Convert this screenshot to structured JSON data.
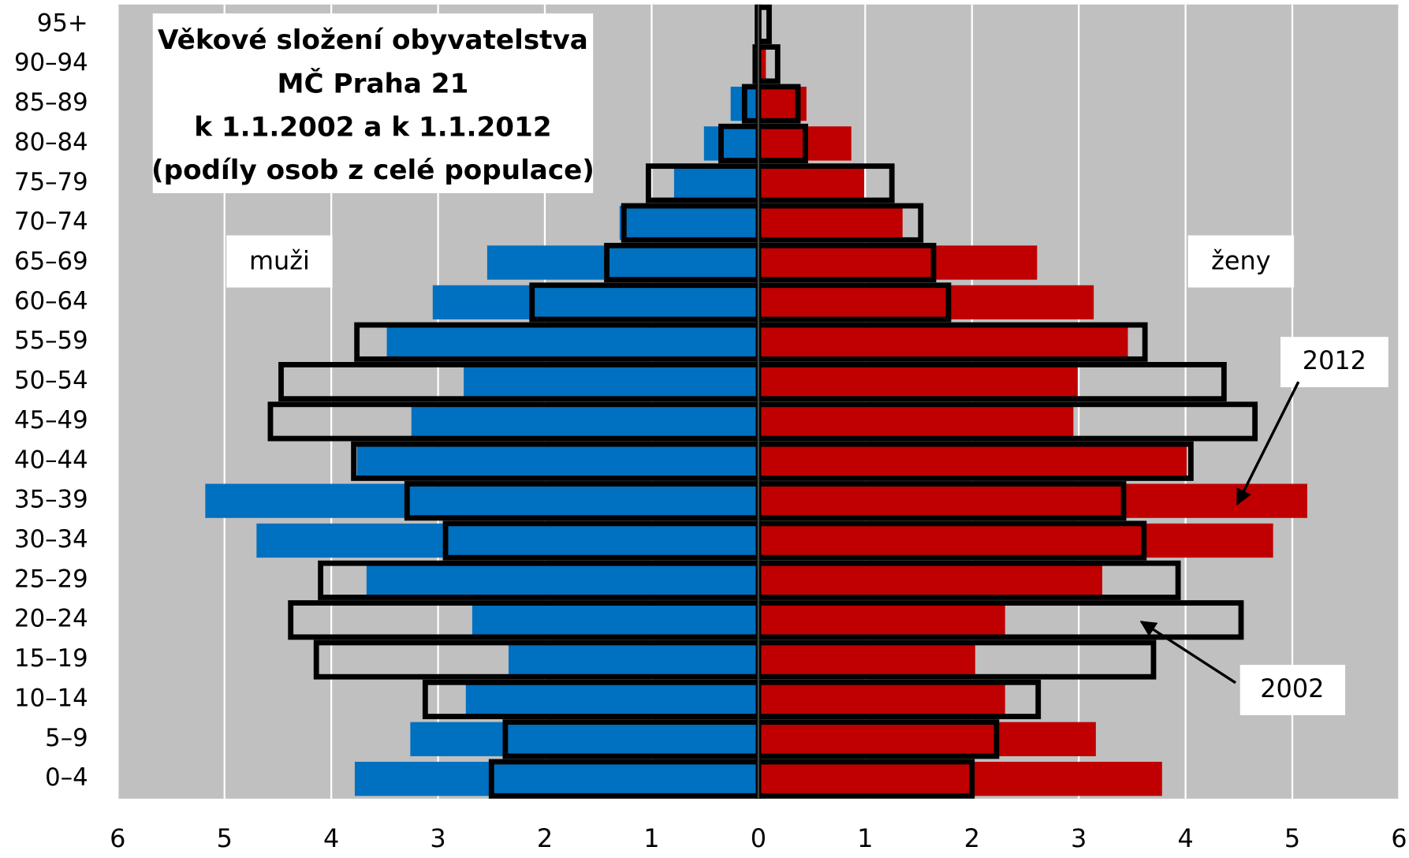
{
  "chart_data": {
    "type": "bar",
    "orientation": "horizontal",
    "title": [
      "Věkové složení obyvatelstva",
      "MČ Praha 21",
      "k 1.1.2002 a k 1.1.2012",
      "(podíly osob z celé populace)"
    ],
    "categories": [
      "0–4",
      "5–9",
      "10–14",
      "15–19",
      "20–24",
      "25–29",
      "30–34",
      "35–39",
      "40–44",
      "45–49",
      "50–54",
      "55–59",
      "60–64",
      "65–69",
      "70–74",
      "75–79",
      "80–84",
      "85–89",
      "90–94",
      "95+"
    ],
    "series": [
      {
        "style": "filled",
        "color": "#0070c0",
        "values": [
          -3.78,
          -3.26,
          -2.74,
          -2.34,
          -2.68,
          -3.67,
          -4.7,
          -5.18,
          -3.76,
          -3.25,
          -2.76,
          -3.48,
          -3.05,
          -2.54,
          -1.3,
          -0.79,
          -0.51,
          -0.26,
          -0.03,
          -0.02
        ]
      },
      {
        "style": "filled",
        "color": "#c00000",
        "values": [
          3.78,
          3.16,
          2.31,
          2.03,
          2.31,
          3.22,
          4.82,
          5.14,
          4.01,
          2.95,
          2.99,
          3.46,
          3.14,
          2.61,
          1.35,
          0.99,
          0.87,
          0.45,
          0.07,
          0.03
        ]
      },
      {
        "style": "outline",
        "color": "#000000",
        "values": [
          -2.5,
          -2.37,
          -3.12,
          -4.14,
          -4.38,
          -4.1,
          -2.93,
          -3.29,
          -3.79,
          -4.57,
          -4.47,
          -3.76,
          -2.12,
          -1.42,
          -1.26,
          -1.03,
          -0.35,
          -0.13,
          -0.03,
          -0.01
        ]
      },
      {
        "style": "outline",
        "color": "#000000",
        "values": [
          2.0,
          2.23,
          2.62,
          3.7,
          4.52,
          3.93,
          3.61,
          3.42,
          4.05,
          4.65,
          4.36,
          3.62,
          1.78,
          1.64,
          1.52,
          1.25,
          0.44,
          0.37,
          0.18,
          0.1
        ]
      }
    ],
    "xlim": [
      -6,
      6
    ],
    "xticks": [
      {
        "value": -6,
        "label": "6"
      },
      {
        "value": -5,
        "label": "5"
      },
      {
        "value": -4,
        "label": "4"
      },
      {
        "value": -3,
        "label": "3"
      },
      {
        "value": -2,
        "label": "2"
      },
      {
        "value": -1,
        "label": "1"
      },
      0,
      1,
      2,
      3,
      4,
      5,
      6
    ],
    "grid": true,
    "annotations": [
      {
        "text": "muži"
      },
      {
        "text": "ženy"
      },
      {
        "text": "2012"
      },
      {
        "text": "2002"
      }
    ]
  }
}
